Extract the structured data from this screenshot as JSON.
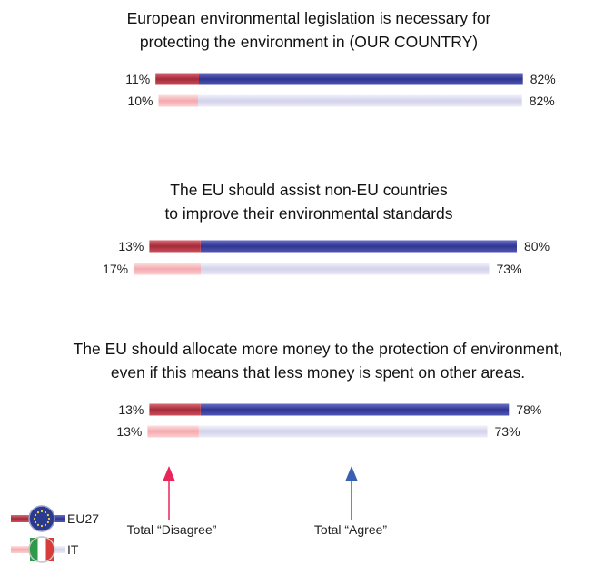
{
  "chart_data": [
    {
      "type": "bar",
      "title_lines": [
        "European environmental legislation is necessary for",
        "protecting the environment in (OUR COUNTRY)"
      ],
      "series": [
        {
          "name": "EU27",
          "disagree": 11,
          "agree": 82
        },
        {
          "name": "IT",
          "disagree": 10,
          "agree": 82
        }
      ]
    },
    {
      "type": "bar",
      "title_lines": [
        "The EU should assist non-EU countries",
        "to improve their environmental standards"
      ],
      "series": [
        {
          "name": "EU27",
          "disagree": 13,
          "agree": 80
        },
        {
          "name": "IT",
          "disagree": 17,
          "agree": 73
        }
      ]
    },
    {
      "type": "bar",
      "title_lines": [
        "The EU should allocate more money to the protection of environment,",
        "even if this means that less money is spent on other areas."
      ],
      "series": [
        {
          "name": "EU27",
          "disagree": 13,
          "agree": 78
        },
        {
          "name": "IT",
          "disagree": 13,
          "agree": 73
        }
      ]
    }
  ],
  "labels": {
    "disagree": "Total “Disagree”",
    "agree": "Total “Agree”"
  },
  "legend": [
    {
      "name": "EU27",
      "icon": "eu-flag-icon"
    },
    {
      "name": "IT",
      "icon": "italy-flag-icon"
    }
  ],
  "colors": {
    "eu_disagree": "#b23a48",
    "eu_agree": "#3a3f9a",
    "it_disagree": "#f6b6b8",
    "it_agree": "#d8d8ee",
    "arrow_disagree": "#e8265a",
    "arrow_agree": "#3a5fb0"
  }
}
